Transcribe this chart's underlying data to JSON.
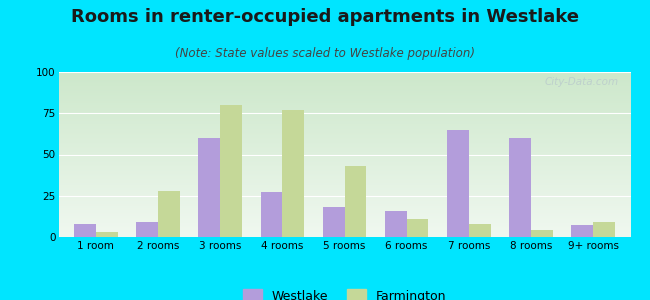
{
  "title": "Rooms in renter-occupied apartments in Westlake",
  "subtitle": "(Note: State values scaled to Westlake population)",
  "categories": [
    "1 room",
    "2 rooms",
    "3 rooms",
    "4 rooms",
    "5 rooms",
    "6 rooms",
    "7 rooms",
    "8 rooms",
    "9+ rooms"
  ],
  "westlake": [
    8,
    9,
    60,
    27,
    18,
    16,
    65,
    60,
    7
  ],
  "farmington": [
    3,
    28,
    80,
    77,
    43,
    11,
    8,
    4,
    9
  ],
  "westlake_color": "#b39ddb",
  "farmington_color": "#c5d898",
  "background_outer": "#00e5ff",
  "grad_top": "#cde8cb",
  "grad_bottom": "#f0f8f0",
  "ylim": [
    0,
    100
  ],
  "yticks": [
    0,
    25,
    50,
    75,
    100
  ],
  "bar_width": 0.35,
  "title_fontsize": 13,
  "subtitle_fontsize": 8.5,
  "tick_fontsize": 7.5,
  "legend_fontsize": 9,
  "watermark_text": "City-Data.com",
  "watermark_color": "#bbcccc"
}
